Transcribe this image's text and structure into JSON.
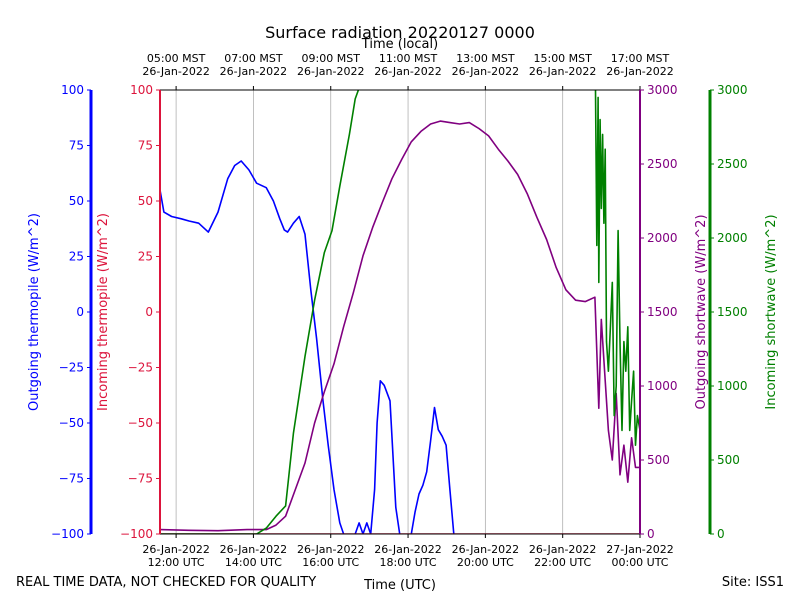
{
  "chart_data": {
    "type": "line",
    "title": "Surface radiation 20220127 0000",
    "xlabel": "Time (UTC)",
    "xlabel_top": "Time (local)",
    "xlim": [
      "2022-01-26 11:35 UTC",
      "2022-01-27 00:00 UTC"
    ],
    "x_ticks_bottom": [
      {
        "t": "2022-01-26 12:00",
        "label": "26-Jan-2022\n12:00 UTC"
      },
      {
        "t": "2022-01-26 14:00",
        "label": "26-Jan-2022\n14:00 UTC"
      },
      {
        "t": "2022-01-26 16:00",
        "label": "26-Jan-2022\n16:00 UTC"
      },
      {
        "t": "2022-01-26 18:00",
        "label": "26-Jan-2022\n18:00 UTC"
      },
      {
        "t": "2022-01-26 20:00",
        "label": "26-Jan-2022\n20:00 UTC"
      },
      {
        "t": "2022-01-26 22:00",
        "label": "26-Jan-2022\n22:00 UTC"
      },
      {
        "t": "2022-01-27 00:00",
        "label": "27-Jan-2022\n00:00 UTC"
      }
    ],
    "x_ticks_top": [
      {
        "t": "2022-01-26 12:00",
        "label": "05:00 MST\n26-Jan-2022"
      },
      {
        "t": "2022-01-26 14:00",
        "label": "07:00 MST\n26-Jan-2022"
      },
      {
        "t": "2022-01-26 16:00",
        "label": "09:00 MST\n26-Jan-2022"
      },
      {
        "t": "2022-01-26 18:00",
        "label": "11:00 MST\n26-Jan-2022"
      },
      {
        "t": "2022-01-26 20:00",
        "label": "13:00 MST\n26-Jan-2022"
      },
      {
        "t": "2022-01-26 22:00",
        "label": "15:00 MST\n26-Jan-2022"
      },
      {
        "t": "2022-01-27 00:00",
        "label": "17:00 MST\n26-Jan-2022"
      }
    ],
    "grid": "vertical",
    "footer_left": "REAL TIME DATA, NOT CHECKED FOR QUALITY",
    "footer_right": "Site: ISS1",
    "axes": {
      "outgoing_thermopile": {
        "label": "Outgoing thermopile (W/m^2)",
        "color": "#0000ff",
        "ylim": [
          -100,
          100
        ],
        "ticks": [
          -100,
          -75,
          -50,
          -25,
          0,
          25,
          50,
          75,
          100
        ]
      },
      "incoming_thermopile": {
        "label": "Incoming thermopile (W/m^2)",
        "color": "#dc143c",
        "ylim": [
          -100,
          100
        ],
        "ticks": [
          -100,
          -75,
          -50,
          -25,
          0,
          25,
          50,
          75,
          100
        ]
      },
      "outgoing_shortwave": {
        "label": "Outgoing shortwave (W/m^2)",
        "color": "#800080",
        "ylim": [
          0,
          3000
        ],
        "ticks": [
          0,
          500,
          1000,
          1500,
          2000,
          2500,
          3000
        ]
      },
      "incoming_shortwave": {
        "label": "Incoming shortwave (W/m^2)",
        "color": "#008000",
        "ylim": [
          0,
          3000
        ],
        "ticks": [
          0,
          500,
          1000,
          1500,
          2000,
          2500,
          3000
        ]
      }
    },
    "series": [
      {
        "axis": "outgoing_thermopile",
        "color": "#0000ff",
        "x": [
          "2022-01-26 11:35",
          "2022-01-26 11:41",
          "2022-01-26 11:53",
          "2022-01-26 12:08",
          "2022-01-26 12:20",
          "2022-01-26 12:35",
          "2022-01-26 12:50",
          "2022-01-26 13:05",
          "2022-01-26 13:20",
          "2022-01-26 13:31",
          "2022-01-26 13:41",
          "2022-01-26 13:53",
          "2022-01-26 14:05",
          "2022-01-26 14:20",
          "2022-01-26 14:31",
          "2022-01-26 14:41",
          "2022-01-26 14:48",
          "2022-01-26 14:53",
          "2022-01-26 15:02",
          "2022-01-26 15:11",
          "2022-01-26 15:20",
          "2022-01-26 15:29",
          "2022-01-26 15:38",
          "2022-01-26 15:48",
          "2022-01-26 15:56",
          "2022-01-26 16:05",
          "2022-01-26 16:14",
          "2022-01-26 16:20"
        ],
        "y": [
          55,
          45,
          43,
          42,
          41,
          40,
          36,
          45,
          60,
          66,
          68,
          64,
          58,
          56,
          50,
          42,
          37,
          36,
          40,
          43,
          35,
          10,
          -12,
          -40,
          -60,
          -80,
          -95,
          -100
        ]
      },
      {
        "axis": "outgoing_thermopile",
        "color": "#0000ff",
        "x": [
          "2022-01-26 16:38",
          "2022-01-26 16:44",
          "2022-01-26 16:50",
          "2022-01-26 16:56",
          "2022-01-26 17:02",
          "2022-01-26 17:08",
          "2022-01-26 17:12",
          "2022-01-26 17:17",
          "2022-01-26 17:23",
          "2022-01-26 17:32",
          "2022-01-26 17:41",
          "2022-01-26 17:47"
        ],
        "y": [
          -100,
          -95,
          -100,
          -95,
          -100,
          -80,
          -50,
          -31,
          -33,
          -40,
          -88,
          -100
        ]
      },
      {
        "axis": "outgoing_thermopile",
        "color": "#0000ff",
        "x": [
          "2022-01-26 18:05",
          "2022-01-26 18:11",
          "2022-01-26 18:17",
          "2022-01-26 18:23",
          "2022-01-26 18:29",
          "2022-01-26 18:35",
          "2022-01-26 18:41",
          "2022-01-26 18:47",
          "2022-01-26 18:53",
          "2022-01-26 18:59",
          "2022-01-26 19:05",
          "2022-01-26 19:11"
        ],
        "y": [
          -100,
          -90,
          -82,
          -78,
          -72,
          -58,
          -43,
          -53,
          -56,
          -60,
          -80,
          -100
        ]
      },
      {
        "axis": "incoming_thermopile",
        "color": "#dc143c",
        "x": [
          "2022-01-26 11:35",
          "2022-01-27 00:00"
        ],
        "y": [
          -100,
          -100
        ]
      },
      {
        "axis": "outgoing_shortwave",
        "color": "#800080",
        "x": [
          "2022-01-26 11:35",
          "2022-01-26 12:20",
          "2022-01-26 13:05",
          "2022-01-26 13:50",
          "2022-01-26 14:20",
          "2022-01-26 14:35",
          "2022-01-26 14:50",
          "2022-01-26 15:05",
          "2022-01-26 15:20",
          "2022-01-26 15:35",
          "2022-01-26 15:50",
          "2022-01-26 16:05",
          "2022-01-26 16:20",
          "2022-01-26 16:35",
          "2022-01-26 16:50",
          "2022-01-26 17:05",
          "2022-01-26 17:20",
          "2022-01-26 17:35",
          "2022-01-26 17:50",
          "2022-01-26 18:05",
          "2022-01-26 18:20",
          "2022-01-26 18:35",
          "2022-01-26 18:50",
          "2022-01-26 19:05",
          "2022-01-26 19:20",
          "2022-01-26 19:35",
          "2022-01-26 19:50",
          "2022-01-26 20:05",
          "2022-01-26 20:20",
          "2022-01-26 20:35",
          "2022-01-26 20:50",
          "2022-01-26 21:05",
          "2022-01-26 21:20",
          "2022-01-26 21:35",
          "2022-01-26 21:50",
          "2022-01-26 22:05",
          "2022-01-26 22:20",
          "2022-01-26 22:35",
          "2022-01-26 22:50",
          "2022-01-26 22:56",
          "2022-01-26 23:00",
          "2022-01-26 23:05",
          "2022-01-26 23:11",
          "2022-01-26 23:17",
          "2022-01-26 23:23",
          "2022-01-26 23:29",
          "2022-01-26 23:35",
          "2022-01-26 23:41",
          "2022-01-26 23:47",
          "2022-01-26 23:53",
          "2022-01-27 00:00"
        ],
        "y": [
          30,
          25,
          22,
          30,
          30,
          60,
          120,
          300,
          480,
          750,
          960,
          1150,
          1400,
          1630,
          1880,
          2070,
          2240,
          2400,
          2530,
          2650,
          2720,
          2770,
          2790,
          2780,
          2770,
          2780,
          2740,
          2690,
          2600,
          2520,
          2430,
          2300,
          2140,
          1990,
          1800,
          1650,
          1580,
          1570,
          1600,
          850,
          1450,
          1100,
          700,
          500,
          950,
          400,
          600,
          350,
          650,
          450,
          450
        ]
      },
      {
        "axis": "incoming_shortwave",
        "color": "#008000",
        "x": [
          "2022-01-26 11:35",
          "2022-01-26 14:05",
          "2022-01-26 14:20",
          "2022-01-26 14:35",
          "2022-01-26 14:50",
          "2022-01-26 15:02",
          "2022-01-26 15:08",
          "2022-01-26 15:20",
          "2022-01-26 15:35",
          "2022-01-26 15:50",
          "2022-01-26 16:02",
          "2022-01-26 16:14",
          "2022-01-26 16:29",
          "2022-01-26 16:38",
          "2022-01-26 16:43"
        ],
        "y": [
          0,
          0,
          40,
          120,
          190,
          680,
          850,
          1200,
          1580,
          1900,
          2050,
          2350,
          2700,
          2940,
          3000
        ]
      },
      {
        "axis": "incoming_shortwave",
        "color": "#008000",
        "x": [
          "2022-01-26 22:51",
          "2022-01-26 22:53",
          "2022-01-26 22:55",
          "2022-01-26 22:56",
          "2022-01-26 22:58",
          "2022-01-26 23:00",
          "2022-01-26 23:02",
          "2022-01-26 23:04",
          "2022-01-26 23:06",
          "2022-01-26 23:08",
          "2022-01-26 23:11",
          "2022-01-26 23:14",
          "2022-01-26 23:17",
          "2022-01-26 23:20",
          "2022-01-26 23:23",
          "2022-01-26 23:26",
          "2022-01-26 23:29",
          "2022-01-26 23:32",
          "2022-01-26 23:35",
          "2022-01-26 23:38",
          "2022-01-26 23:41",
          "2022-01-26 23:44",
          "2022-01-26 23:47",
          "2022-01-26 23:50",
          "2022-01-26 23:53",
          "2022-01-26 23:56",
          "2022-01-27 00:00"
        ],
        "y": [
          3000,
          1950,
          2950,
          1700,
          2800,
          2200,
          2700,
          2100,
          2600,
          1300,
          1100,
          1400,
          1700,
          800,
          1000,
          2050,
          1300,
          700,
          1300,
          1100,
          1400,
          700,
          900,
          1100,
          600,
          800,
          700
        ]
      }
    ]
  }
}
